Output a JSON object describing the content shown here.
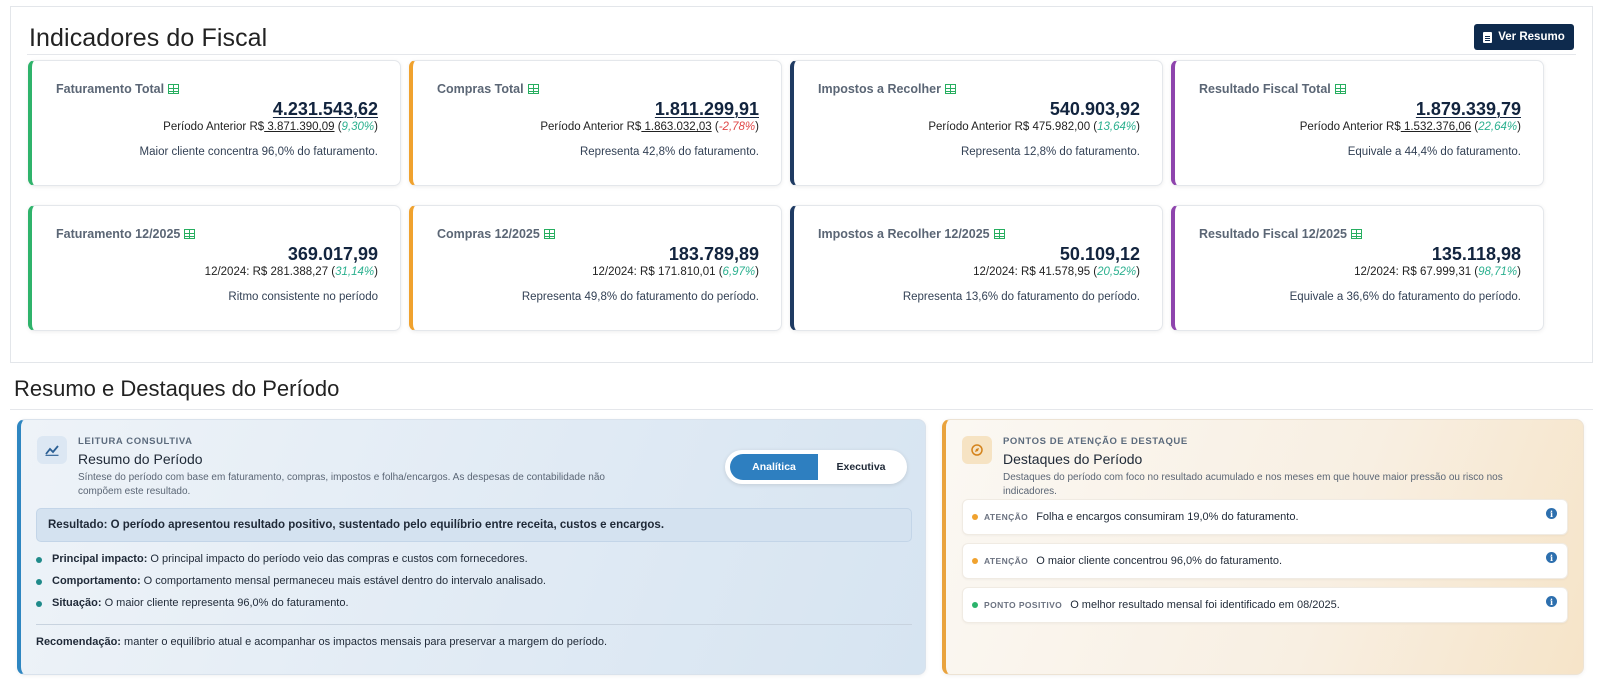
{
  "top": {
    "title": "Indicadores do Fiscal",
    "button_label": "Ver Resumo"
  },
  "colors": {
    "green": "#2fb36b",
    "orange": "#f0a22e",
    "navy": "#1f3b63",
    "purple": "#8e44ad",
    "positive_pct": "#2bb08f",
    "negative_pct": "#e04848",
    "button_bg": "#0e2a4d"
  },
  "cards": [
    {
      "title": "Faturamento Total",
      "value": "4.231.543,62",
      "prev_prefix": "Período Anterior R$",
      "prev_value": " 3.871.390,09",
      "pct": "9,30%",
      "note": "Maior cliente concentra 96,0% do faturamento."
    },
    {
      "title": "Compras Total",
      "value": "1.811.299,91",
      "prev_prefix": "Período Anterior R$",
      "prev_value": " 1.863.032,03",
      "pct": "-2,78%",
      "note": "Representa 42,8% do faturamento."
    },
    {
      "title": "Impostos a Recolher",
      "value": "540.903,92",
      "prev_prefix": "Período Anterior R$",
      "prev_value": " 475.982,00",
      "pct": "13,64%",
      "note": "Representa 12,8% do faturamento."
    },
    {
      "title": "Resultado Fiscal Total",
      "value": "1.879.339,79",
      "prev_prefix": "Período Anterior R$",
      "prev_value": " 1.532.376,06",
      "pct": "22,64%",
      "note": "Equivale a 44,4% do faturamento."
    },
    {
      "title": "Faturamento 12/2025",
      "value": "369.017,99",
      "prev_prefix": "12/2024: R$",
      "prev_value": " 281.388,27",
      "pct": "31,14%",
      "note": "Ritmo consistente no período"
    },
    {
      "title": "Compras 12/2025",
      "value": "183.789,89",
      "prev_prefix": "12/2024: R$",
      "prev_value": " 171.810,01",
      "pct": "6,97%",
      "note": "Representa 49,8% do faturamento do período."
    },
    {
      "title": "Impostos a Recolher 12/2025",
      "value": "50.109,12",
      "prev_prefix": "12/2024: R$",
      "prev_value": " 41.578,95",
      "pct": "20,52%",
      "note": "Representa 13,6% do faturamento do período."
    },
    {
      "title": "Resultado Fiscal 12/2025",
      "value": "135.118,98",
      "prev_prefix": "12/2024: R$",
      "prev_value": " 67.999,31",
      "pct": "98,71%",
      "note": "Equivale a 36,6% do faturamento do período."
    }
  ],
  "section2": {
    "title": "Resumo e Destaques do Período"
  },
  "left_panel": {
    "kicker": "LEITURA CONSULTIVA",
    "title": "Resumo do Período",
    "description": "Síntese do período com base em faturamento, compras, impostos e folha/encargos. As despesas de contabilidade não compõem este resultado.",
    "toggle_analitica": "Analítica",
    "toggle_executiva": "Executiva",
    "result": "Resultado: O período apresentou resultado positivo, sustentado pelo equilíbrio entre receita, custos e encargos.",
    "bullets": [
      {
        "label": "Principal impacto:",
        "text": " O principal impacto do período veio das compras e custos com fornecedores."
      },
      {
        "label": "Comportamento:",
        "text": " O comportamento mensal permaneceu mais estável dentro do intervalo analisado."
      },
      {
        "label": "Situação:",
        "text": " O maior cliente representa 96,0% do faturamento."
      }
    ],
    "recommend_label": "Recomendação:",
    "recommend_text": " manter o equilíbrio atual e acompanhar os impactos mensais para preservar a margem do período."
  },
  "right_panel": {
    "kicker": "PONTOS DE ATENÇÃO E DESTAQUE",
    "title": "Destaques do Período",
    "description": "Destaques do período com foco no resultado acumulado e nos meses em que houve maior pressão ou risco nos indicadores.",
    "alerts": [
      {
        "tag": "ATENÇÃO",
        "text": "Folha e encargos consumiram 19,0% do faturamento.",
        "dot_color": "#f0a22e"
      },
      {
        "tag": "ATENÇÃO",
        "text": "O maior cliente concentrou 96,0% do faturamento.",
        "dot_color": "#f0a22e"
      },
      {
        "tag": "PONTO POSITIVO",
        "text": "O melhor resultado mensal foi identificado em 08/2025.",
        "dot_color": "#2bb36b"
      }
    ]
  }
}
